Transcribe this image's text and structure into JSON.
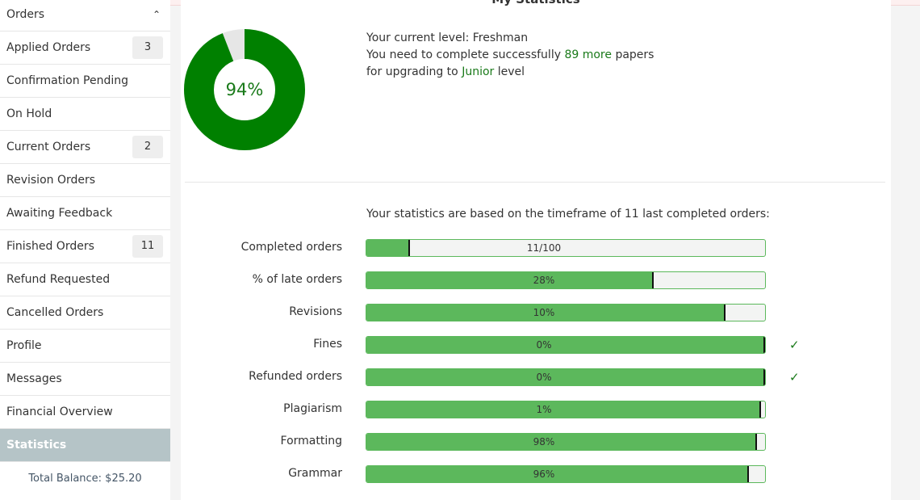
{
  "header": {
    "title": "My Statistics"
  },
  "sidebar": {
    "section": "Orders",
    "items": [
      {
        "label": "Applied Orders",
        "count": 3
      },
      {
        "label": "Confirmation Pending"
      },
      {
        "label": "On Hold"
      },
      {
        "label": "Current Orders",
        "count": 2
      },
      {
        "label": "Revision Orders"
      },
      {
        "label": "Awaiting Feedback"
      },
      {
        "label": "Finished Orders",
        "count": 11
      },
      {
        "label": "Refund Requested"
      },
      {
        "label": "Cancelled Orders"
      },
      {
        "label": "Profile"
      },
      {
        "label": "Messages"
      },
      {
        "label": "Financial Overview"
      },
      {
        "label": "Statistics",
        "active": true
      }
    ],
    "balance": "Total Balance: $25.20"
  },
  "level": {
    "donut": {
      "value": 94,
      "max": 100,
      "value_label": "94%"
    },
    "line1": {
      "text": "Your current level:",
      "level": "Freshman"
    },
    "line2": {
      "text": "You need to complete successfully",
      "highlight": "89 more",
      "after": "papers"
    },
    "line3": {
      "text": "for upgrading to",
      "highlight": "Junior",
      "after": "level"
    }
  },
  "stats": {
    "intro": "Your statistics are based on the timeframe of 11 last completed orders:",
    "rows": [
      {
        "label": "Completed orders",
        "value": 11,
        "max": 100,
        "value_label": "11/100"
      },
      {
        "label": "% of late orders",
        "value": 28,
        "max": 100,
        "value_label": "28%",
        "reversed": true
      },
      {
        "label": "Revisions",
        "value": 10,
        "max": 100,
        "value_label": "10%",
        "reversed": true
      },
      {
        "label": "Fines",
        "value": 0,
        "max": 100,
        "value_label": "0%",
        "reversed": true,
        "mark": "✓"
      },
      {
        "label": "Refunded orders",
        "value": 0,
        "max": 100,
        "value_label": "0%",
        "reversed": true,
        "mark": "✓"
      },
      {
        "label": "Plagiarism",
        "value": 1,
        "max": 100,
        "value_label": "1%",
        "reversed": true
      },
      {
        "label": "Formatting",
        "value": 98,
        "max": 100,
        "value_label": "98%"
      },
      {
        "label": "Grammar",
        "value": 96,
        "max": 100,
        "value_label": "96%"
      }
    ]
  }
}
